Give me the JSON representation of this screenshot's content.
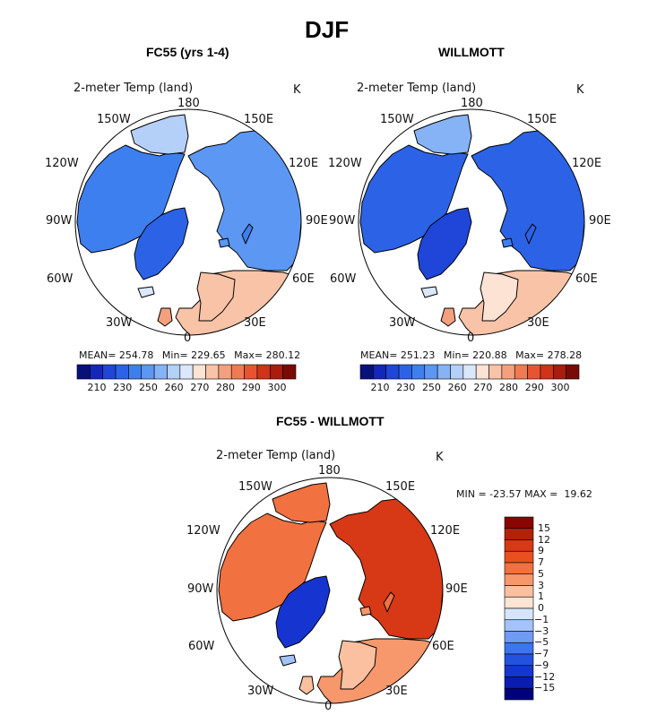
{
  "main_title": "DJF",
  "colors": {
    "abs_scale": [
      "#08107a",
      "#1427b8",
      "#1f46d8",
      "#2c63e6",
      "#3e7ff0",
      "#5c97f3",
      "#86b2f6",
      "#b4cff8",
      "#dbe7fb",
      "#fde3d4",
      "#f8c3a7",
      "#f4a07e",
      "#f07b52",
      "#e85430",
      "#cf3318",
      "#a91c0e",
      "#7a0a06"
    ],
    "diff_scale": [
      "#00007e",
      "#0b1cb0",
      "#1635d0",
      "#2452e0",
      "#3e74ec",
      "#6f9bf2",
      "#a5c3f8",
      "#d7e5fb",
      "#fde4d3",
      "#fac0a0",
      "#f6986c",
      "#f17141",
      "#e9501f",
      "#d73816",
      "#b42009",
      "#880500"
    ],
    "land_white": "#ffffff"
  },
  "panels": [
    {
      "title": "FC55 (yrs 1-4)",
      "variable": "2-meter Temp (land)",
      "units": "K",
      "lon_labels": {
        "n180": "180",
        "w150": "150W",
        "e150": "150E",
        "w120": "120W",
        "e120": "120E",
        "w90": "90W",
        "e90": "90E",
        "w60": "60W",
        "e60": "60E",
        "w30": "30W",
        "e30": "30E",
        "zero": "0"
      },
      "stats": {
        "mean_label": "MEAN=",
        "mean": "254.78",
        "min_label": "Min=",
        "min": "229.65",
        "max_label": "Max=",
        "max": "280.12"
      }
    },
    {
      "title": "WILLMOTT",
      "variable": "2-meter Temp (land)",
      "units": "K",
      "lon_labels": {
        "n180": "180",
        "w150": "150W",
        "e150": "150E",
        "w120": "120W",
        "e120": "120E",
        "w90": "90W",
        "e90": "90E",
        "w60": "60W",
        "e60": "60E",
        "w30": "30W",
        "e30": "30E",
        "zero": "0"
      },
      "stats": {
        "mean_label": "MEAN=",
        "mean": "251.23",
        "min_label": "Min=",
        "min": "220.88",
        "max_label": "Max=",
        "max": "278.28"
      }
    },
    {
      "title": "FC55 - WILLMOTT",
      "variable": "2-meter Temp (land)",
      "units": "K",
      "lon_labels": {
        "n180": "180",
        "w150": "150W",
        "e150": "150E",
        "w120": "120W",
        "e120": "120E",
        "w90": "90W",
        "e90": "90E",
        "w60": "60W",
        "e60": "60E",
        "w30": "30W",
        "e30": "30E",
        "zero": "0"
      },
      "stats": {
        "text": "MIN = -23.57 MAX =  19.62"
      }
    }
  ],
  "colorbar_abs": {
    "labels": [
      "210",
      "230",
      "250",
      "260",
      "270",
      "280",
      "290",
      "300"
    ]
  },
  "colorbar_diff": {
    "labels": [
      "15",
      "12",
      "9",
      "7",
      "5",
      "3",
      "1",
      "0",
      "−1",
      "−3",
      "−5",
      "−7",
      "−9",
      "−12",
      "−15"
    ]
  },
  "chart_data": [
    {
      "type": "heatmap",
      "title": "FC55 (yrs 1-4)",
      "subtitle": "2-meter Temp (land)",
      "units": "K",
      "projection": "north polar stereographic",
      "stats": {
        "mean": 254.78,
        "min": 229.65,
        "max": 280.12
      },
      "colorbar_ticks": [
        210,
        230,
        250,
        260,
        270,
        280,
        290,
        300
      ],
      "regions_approx_K": {
        "Siberia": 245,
        "Canada": 248,
        "Greenland": 240,
        "Alaska": 252,
        "Scandinavia": 270,
        "Europe": 272
      }
    },
    {
      "type": "heatmap",
      "title": "WILLMOTT",
      "subtitle": "2-meter Temp (land)",
      "units": "K",
      "projection": "north polar stereographic",
      "stats": {
        "mean": 251.23,
        "min": 220.88,
        "max": 278.28
      },
      "colorbar_ticks": [
        210,
        230,
        250,
        260,
        270,
        280,
        290,
        300
      ],
      "regions_approx_K": {
        "Siberia": 240,
        "Canada": 246,
        "Greenland": 238,
        "Alaska": 250,
        "Scandinavia": 268,
        "Europe": 270
      }
    },
    {
      "type": "heatmap",
      "title": "FC55 - WILLMOTT",
      "subtitle": "2-meter Temp (land)",
      "units": "K",
      "projection": "north polar stereographic",
      "stats": {
        "min": -23.57,
        "max": 19.62
      },
      "colorbar_ticks": [
        15,
        12,
        9,
        7,
        5,
        3,
        1,
        0,
        -1,
        -3,
        -5,
        -7,
        -9,
        -12,
        -15
      ],
      "regions_approx_K": {
        "Siberia": 9,
        "Canada": 4,
        "Greenland": -7,
        "Alaska": 5,
        "Scandinavia": 2,
        "Europe": 3
      }
    }
  ]
}
